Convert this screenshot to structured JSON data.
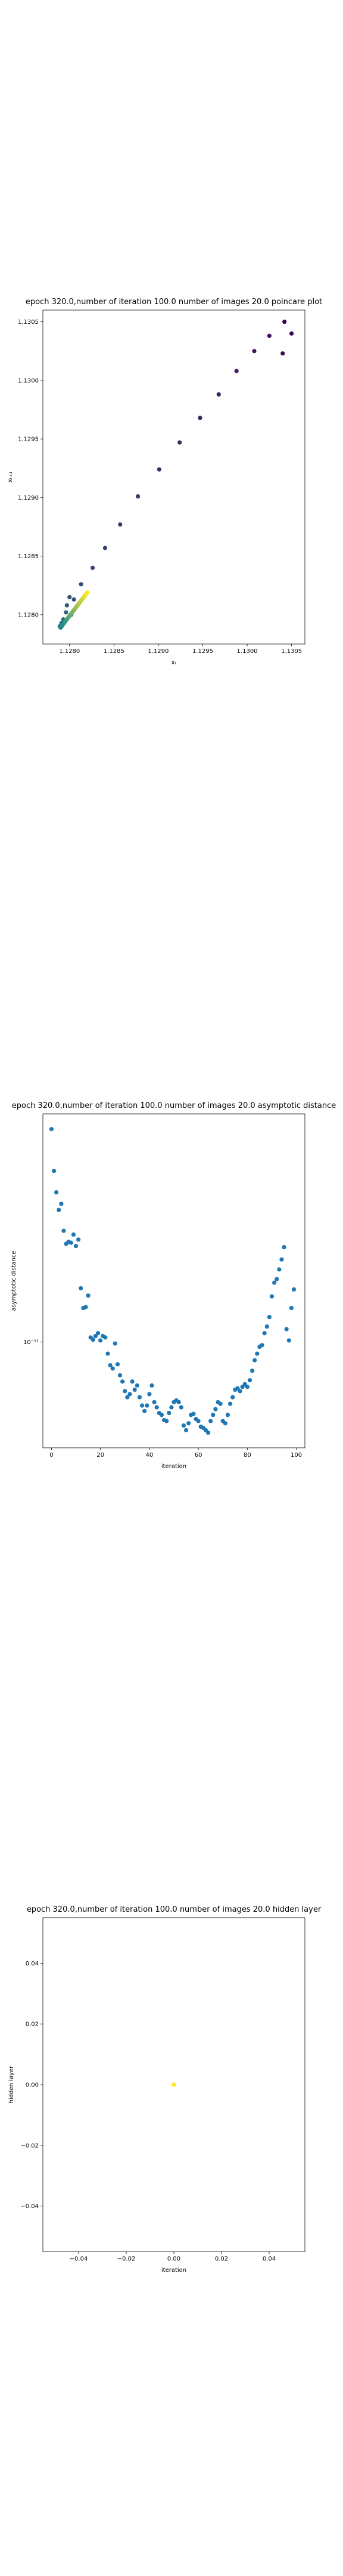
{
  "chart_data": [
    {
      "type": "scatter",
      "title": "epoch 320.0,number of iteration 100.0 number of images 20.0 poincare plot",
      "xlabel": "xₜ",
      "ylabel": "xₜ₊₁",
      "xlim": [
        1.1277,
        1.13065
      ],
      "ylim": [
        1.12775,
        1.1306
      ],
      "xticks": [
        1.128,
        1.1285,
        1.129,
        1.1295,
        1.13,
        1.1305
      ],
      "xtick_labels": [
        "1.1280",
        "1.1285",
        "1.1290",
        "1.1295",
        "1.1300",
        "1.1305"
      ],
      "yticks": [
        1.128,
        1.1285,
        1.129,
        1.1295,
        1.13,
        1.1305
      ],
      "ytick_labels": [
        "1.1280",
        "1.1285",
        "1.1290",
        "1.1295",
        "1.1300",
        "1.1305"
      ],
      "colormap": "viridis (color = iteration order)",
      "colors": {
        "start": "#440154",
        "mid": "#21918c",
        "end": "#fde725"
      },
      "points": [
        {
          "x": 1.13042,
          "y": 1.1305
        },
        {
          "x": 1.1305,
          "y": 1.1304
        },
        {
          "x": 1.1304,
          "y": 1.13023
        },
        {
          "x": 1.13025,
          "y": 1.13038
        },
        {
          "x": 1.13008,
          "y": 1.13025
        },
        {
          "x": 1.12988,
          "y": 1.13008
        },
        {
          "x": 1.12968,
          "y": 1.12988
        },
        {
          "x": 1.12947,
          "y": 1.12968
        },
        {
          "x": 1.12924,
          "y": 1.12947
        },
        {
          "x": 1.12901,
          "y": 1.12924
        },
        {
          "x": 1.12877,
          "y": 1.12901
        },
        {
          "x": 1.12857,
          "y": 1.12877
        },
        {
          "x": 1.1284,
          "y": 1.12857
        },
        {
          "x": 1.12826,
          "y": 1.1284
        },
        {
          "x": 1.12813,
          "y": 1.12826
        },
        {
          "x": 1.12805,
          "y": 1.12813
        },
        {
          "x": 1.128,
          "y": 1.12815
        },
        {
          "x": 1.12797,
          "y": 1.12808
        },
        {
          "x": 1.12802,
          "y": 1.128
        },
        {
          "x": 1.12796,
          "y": 1.12802
        },
        {
          "x": 1.12793,
          "y": 1.12796
        },
        {
          "x": 1.12791,
          "y": 1.12793
        },
        {
          "x": 1.1279,
          "y": 1.12791
        },
        {
          "x": 1.12789,
          "y": 1.1279
        },
        {
          "x": 1.1279,
          "y": 1.12789
        },
        {
          "x": 1.12791,
          "y": 1.1279
        },
        {
          "x": 1.12792,
          "y": 1.12791
        },
        {
          "x": 1.12793,
          "y": 1.12792
        },
        {
          "x": 1.12794,
          "y": 1.12793
        },
        {
          "x": 1.12795,
          "y": 1.12794
        },
        {
          "x": 1.12796,
          "y": 1.12795
        },
        {
          "x": 1.12797,
          "y": 1.12796
        },
        {
          "x": 1.12798,
          "y": 1.12797
        },
        {
          "x": 1.12799,
          "y": 1.12798
        },
        {
          "x": 1.128,
          "y": 1.12799
        },
        {
          "x": 1.12801,
          "y": 1.128
        },
        {
          "x": 1.12802,
          "y": 1.12801
        },
        {
          "x": 1.12803,
          "y": 1.12802
        },
        {
          "x": 1.12804,
          "y": 1.12803
        },
        {
          "x": 1.12805,
          "y": 1.12804
        },
        {
          "x": 1.12806,
          "y": 1.12805
        },
        {
          "x": 1.12807,
          "y": 1.12806
        },
        {
          "x": 1.12808,
          "y": 1.12807
        },
        {
          "x": 1.12809,
          "y": 1.12808
        },
        {
          "x": 1.1281,
          "y": 1.12809
        },
        {
          "x": 1.12811,
          "y": 1.1281
        },
        {
          "x": 1.12812,
          "y": 1.12811
        },
        {
          "x": 1.12813,
          "y": 1.12812
        },
        {
          "x": 1.12814,
          "y": 1.12813
        },
        {
          "x": 1.12815,
          "y": 1.12814
        },
        {
          "x": 1.12816,
          "y": 1.12815
        },
        {
          "x": 1.12817,
          "y": 1.12816
        },
        {
          "x": 1.12818,
          "y": 1.12817
        },
        {
          "x": 1.12819,
          "y": 1.12818
        },
        {
          "x": 1.1282,
          "y": 1.12819
        }
      ]
    },
    {
      "type": "scatter",
      "title": "epoch 320.0,number of iteration 100.0  number of images 20.0 asymptotic distance",
      "xlabel": "iteration",
      "ylabel": "asymptotic distance",
      "xlim": [
        -3.5,
        103.5
      ],
      "xticks": [
        0,
        20,
        40,
        60,
        80,
        100
      ],
      "xtick_labels": [
        "0",
        "20",
        "40",
        "60",
        "80",
        "100"
      ],
      "yscale": "log",
      "yticks": [
        1e-11
      ],
      "ytick_labels": [
        "10⁻¹¹"
      ],
      "color": "#1f77b4",
      "x": [
        0,
        1,
        2,
        3,
        4,
        5,
        6,
        7,
        8,
        9,
        10,
        11,
        12,
        13,
        14,
        15,
        16,
        17,
        18,
        19,
        20,
        21,
        22,
        23,
        24,
        25,
        26,
        27,
        28,
        29,
        30,
        31,
        32,
        33,
        34,
        35,
        36,
        37,
        38,
        39,
        40,
        41,
        42,
        43,
        44,
        45,
        46,
        47,
        48,
        49,
        50,
        51,
        52,
        53,
        54,
        55,
        56,
        57,
        58,
        59,
        60,
        61,
        62,
        63,
        64,
        65,
        66,
        67,
        68,
        69,
        70,
        71,
        72,
        73,
        74,
        75,
        76,
        77,
        78,
        79,
        80,
        81,
        82,
        83,
        84,
        85,
        86,
        87,
        88,
        89,
        90,
        91,
        92,
        93,
        94,
        95,
        96,
        97,
        98,
        99
      ],
      "y": [
        1.56e-10,
        9.1e-11,
        6.9e-11,
        5.5e-11,
        5.95e-11,
        4.2e-11,
        3.55e-11,
        3.65e-11,
        3.6e-11,
        4e-11,
        3.45e-11,
        3.75e-11,
        2e-11,
        1.55e-11,
        1.57e-11,
        1.82e-11,
        1.06e-11,
        1.03e-11,
        1.08e-11,
        1.12e-11,
        1.02e-11,
        1.08e-11,
        1.06e-11,
        8.6e-12,
        7.4e-12,
        7.1e-12,
        9.8e-12,
        7.5e-12,
        6.5e-12,
        6e-12,
        5.3e-12,
        4.9e-12,
        5.1e-12,
        6e-12,
        5.4e-12,
        5.7e-12,
        4.9e-12,
        4.4e-12,
        4.1e-12,
        4.4e-12,
        5.1e-12,
        5.7e-12,
        4.6e-12,
        4.3e-12,
        4e-12,
        3.9e-12,
        3.65e-12,
        3.6e-12,
        4e-12,
        4.3e-12,
        4.6e-12,
        4.7e-12,
        4.6e-12,
        4.3e-12,
        3.4e-12,
        3.2e-12,
        3.5e-12,
        3.9e-12,
        3.95e-12,
        3.7e-12,
        3.6e-12,
        3.35e-12,
        3.3e-12,
        3.2e-12,
        3.1e-12,
        3.6e-12,
        3.9e-12,
        4.2e-12,
        4.6e-12,
        4.5e-12,
        3.6e-12,
        3.5e-12,
        3.9e-12,
        4.5e-12,
        4.9e-12,
        5.4e-12,
        5.5e-12,
        5.3e-12,
        5.6e-12,
        5.8e-12,
        5.6e-12,
        6.1e-12,
        6.9e-12,
        7.9e-12,
        8.6e-12,
        9.4e-12,
        9.6e-12,
        1.12e-11,
        1.22e-11,
        1.38e-11,
        1.8e-11,
        2.15e-11,
        2.25e-11,
        2.55e-11,
        2.9e-11,
        3.4e-11,
        1.18e-11,
        1.02e-11,
        1.55e-11,
        1.97e-11
      ]
    },
    {
      "type": "scatter",
      "title": "epoch 320.0,number of iteration 100.0  number of images 20.0 hidden layer",
      "xlabel": "iteration",
      "ylabel": "hidden layer",
      "xlim": [
        -0.055,
        0.055
      ],
      "ylim": [
        -0.055,
        0.055
      ],
      "xticks": [
        -0.04,
        -0.02,
        0.0,
        0.02,
        0.04
      ],
      "xtick_labels": [
        "−0.04",
        "−0.02",
        "0.00",
        "0.02",
        "0.04"
      ],
      "yticks": [
        -0.04,
        -0.02,
        0.0,
        0.02,
        0.04
      ],
      "ytick_labels": [
        "−0.04",
        "−0.02",
        "0.00",
        "0.02",
        "0.04"
      ],
      "color": "#fde725",
      "points": [
        {
          "x": 0.0,
          "y": 0.0
        }
      ]
    }
  ]
}
